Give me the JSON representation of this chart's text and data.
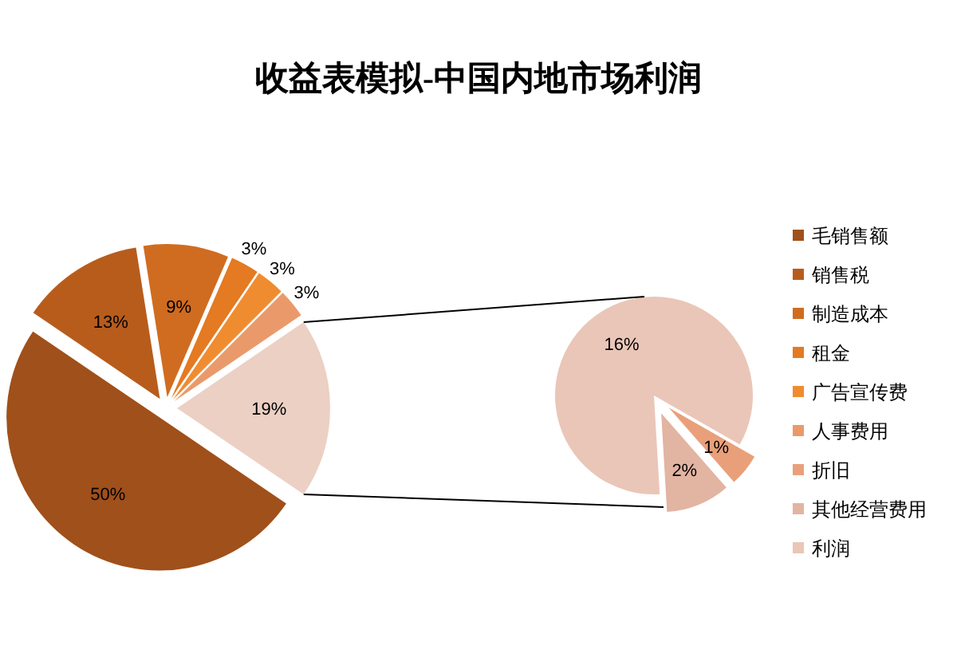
{
  "chart_data": [
    {
      "type": "pie",
      "title": "收益表模拟-中国内地市场利润",
      "categories": [
        "毛销售额",
        "销售税",
        "制造成本",
        "租金",
        "广告宣传费",
        "人事费用",
        null
      ],
      "values": [
        50,
        13,
        9,
        3,
        3,
        3,
        19
      ],
      "value_labels": [
        "50%",
        "13%",
        "9%",
        "3%",
        "3%",
        "3%",
        "19%"
      ],
      "colors": [
        "#a0501a",
        "#b85c1c",
        "#d06c20",
        "#e47a22",
        "#f08c30",
        "#ea9a6a",
        "#ecd0c4"
      ],
      "legend": "right"
    },
    {
      "type": "pie",
      "categories": [
        "折旧",
        "其他经营费用",
        "利润"
      ],
      "values": [
        1,
        2,
        16
      ],
      "value_labels": [
        "1%",
        "2%",
        "16%"
      ],
      "colors": [
        "#e9a07a",
        "#e2b4a2",
        "#eac6b8"
      ],
      "legend": "right"
    }
  ]
}
